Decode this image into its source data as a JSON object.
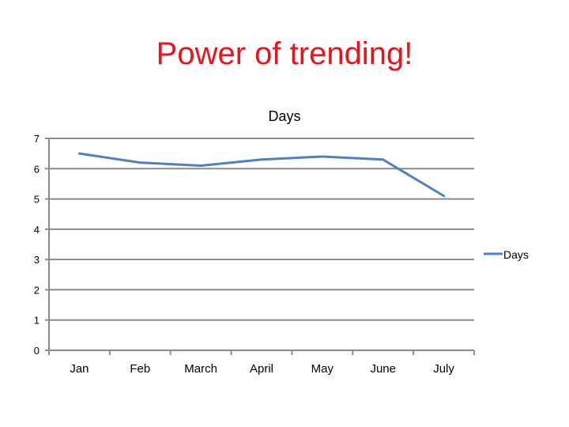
{
  "slide": {
    "title": "Power of trending!"
  },
  "colors": {
    "title": "#e8141b",
    "series": "#4f81bd",
    "grid": "#8c8c8c",
    "text": "#000000"
  },
  "chart_data": {
    "type": "line",
    "title": "Days",
    "xlabel": "",
    "ylabel": "",
    "categories": [
      "Jan",
      "Feb",
      "March",
      "April",
      "May",
      "June",
      "July"
    ],
    "series": [
      {
        "name": "Days",
        "values": [
          6.5,
          6.2,
          6.1,
          6.3,
          6.4,
          6.3,
          5.1
        ]
      }
    ],
    "ylim": [
      0,
      7
    ],
    "yticks": [
      "0",
      "1",
      "2",
      "3",
      "4",
      "5",
      "6",
      "7"
    ],
    "grid": true,
    "legend": "right"
  }
}
